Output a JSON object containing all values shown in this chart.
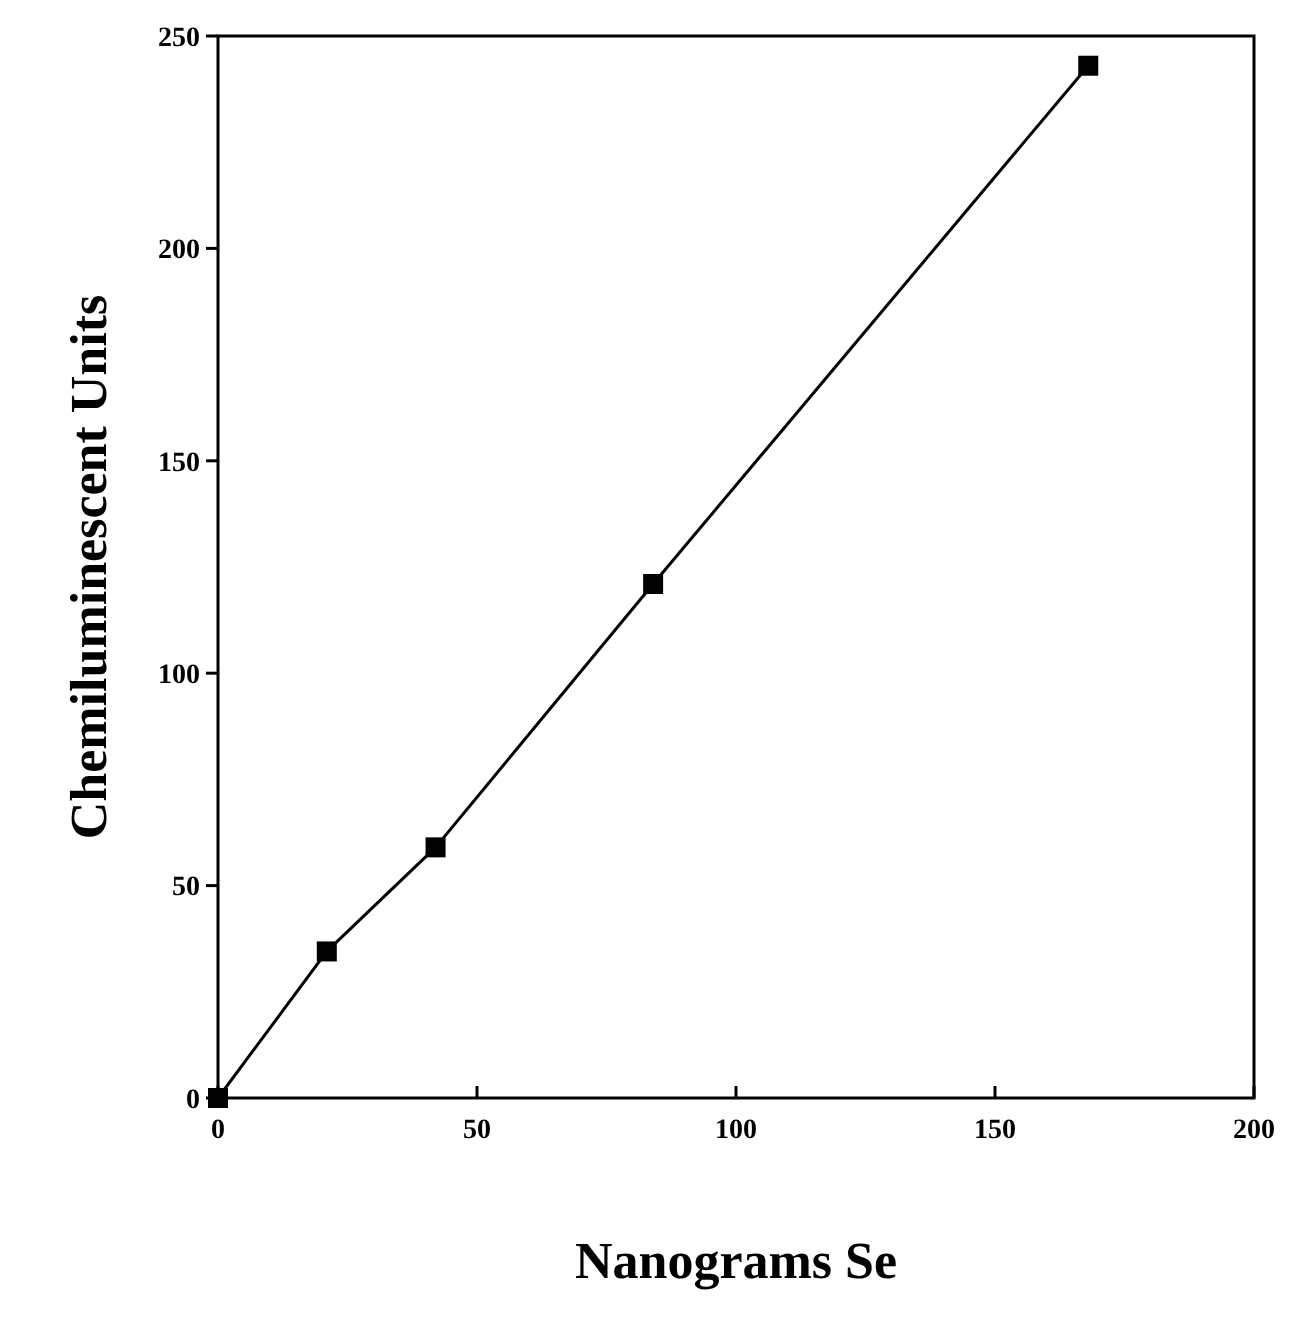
{
  "chart_data": {
    "type": "line",
    "xlabel": "Nanograms Se",
    "ylabel": "Chemiluminescent Units",
    "x": [
      0,
      21,
      42,
      84,
      168
    ],
    "series": [
      {
        "color": "#000000",
        "values": [
          0,
          34.5,
          59,
          121,
          243
        ]
      }
    ],
    "xlim": [
      0,
      200
    ],
    "xticks": [
      0,
      50,
      100,
      150,
      200
    ],
    "ylim": [
      0,
      250
    ],
    "yticks": [
      0,
      50,
      100,
      150,
      200,
      250
    ],
    "marker": "square",
    "line_style": "solid",
    "grid": false
  }
}
